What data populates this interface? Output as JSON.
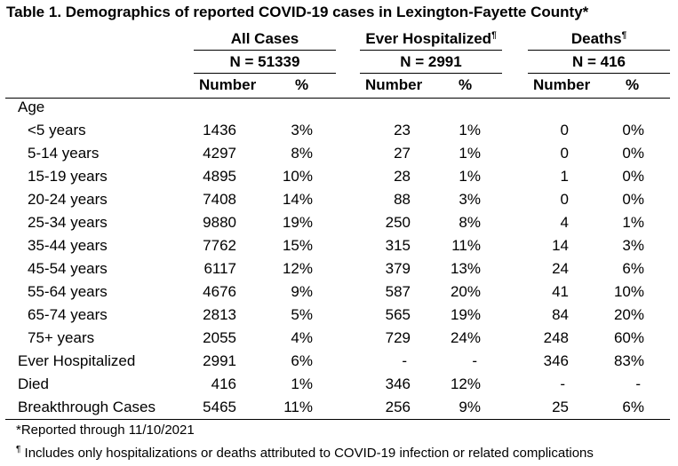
{
  "title": "Table 1. Demographics of reported COVID-19 cases in Lexington-Fayette County*",
  "groups": [
    {
      "label": "All Cases",
      "mark": "",
      "n": "N = 51339"
    },
    {
      "label": "Ever Hospitalized",
      "mark": "¶",
      "n": "N = 2991"
    },
    {
      "label": "Deaths",
      "mark": "¶",
      "n": "N = 416"
    }
  ],
  "subheaders": {
    "number": "Number",
    "percent": "%"
  },
  "section_age": "Age",
  "rows": [
    {
      "label": "<5 years",
      "indent": true,
      "v": [
        "1436",
        "3%",
        "23",
        "1%",
        "0",
        "0%"
      ]
    },
    {
      "label": "5-14 years",
      "indent": true,
      "v": [
        "4297",
        "8%",
        "27",
        "1%",
        "0",
        "0%"
      ]
    },
    {
      "label": "15-19 years",
      "indent": true,
      "v": [
        "4895",
        "10%",
        "28",
        "1%",
        "1",
        "0%"
      ]
    },
    {
      "label": "20-24 years",
      "indent": true,
      "v": [
        "7408",
        "14%",
        "88",
        "3%",
        "0",
        "0%"
      ]
    },
    {
      "label": "25-34 years",
      "indent": true,
      "v": [
        "9880",
        "19%",
        "250",
        "8%",
        "4",
        "1%"
      ]
    },
    {
      "label": "35-44 years",
      "indent": true,
      "v": [
        "7762",
        "15%",
        "315",
        "11%",
        "14",
        "3%"
      ]
    },
    {
      "label": "45-54 years",
      "indent": true,
      "v": [
        "6117",
        "12%",
        "379",
        "13%",
        "24",
        "6%"
      ]
    },
    {
      "label": "55-64 years",
      "indent": true,
      "v": [
        "4676",
        "9%",
        "587",
        "20%",
        "41",
        "10%"
      ]
    },
    {
      "label": "65-74 years",
      "indent": true,
      "v": [
        "2813",
        "5%",
        "565",
        "19%",
        "84",
        "20%"
      ]
    },
    {
      "label": "75+ years",
      "indent": true,
      "v": [
        "2055",
        "4%",
        "729",
        "24%",
        "248",
        "60%"
      ]
    },
    {
      "label": "Ever Hospitalized",
      "indent": false,
      "v": [
        "2991",
        "6%",
        "-",
        "-",
        "346",
        "83%"
      ]
    },
    {
      "label": "Died",
      "indent": false,
      "v": [
        "416",
        "1%",
        "346",
        "12%",
        "-",
        "-"
      ]
    },
    {
      "label": "Breakthrough Cases",
      "indent": false,
      "v": [
        "5465",
        "11%",
        "256",
        "9%",
        "25",
        "6%"
      ]
    }
  ],
  "footnotes": [
    {
      "mark": "",
      "text": "*Reported through 11/10/2021"
    },
    {
      "mark": "¶",
      "text": " Includes only hospitalizations or deaths attributed to COVID-19 infection or related complications"
    }
  ]
}
